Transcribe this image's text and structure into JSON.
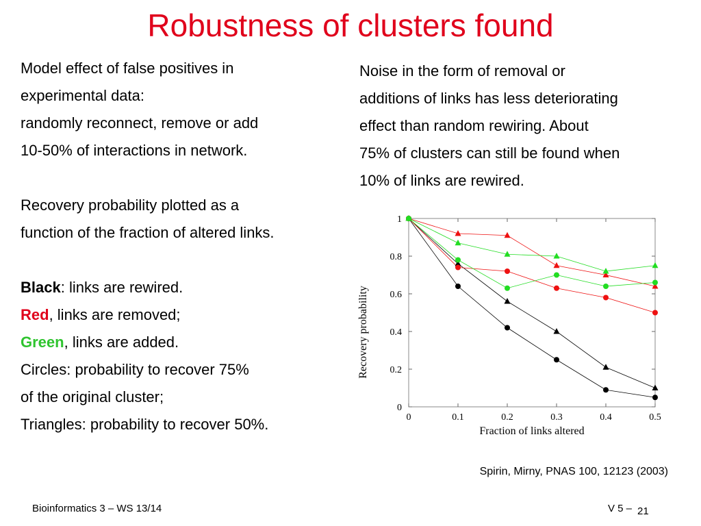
{
  "slide": {
    "title": "Robustness of clusters found",
    "left_lines": [
      "Model effect of false positives in",
      "experimental data:",
      "randomly reconnect, remove or add",
      "10-50% of interactions in network.",
      "Recovery probability plotted as a",
      "function of the fraction of altered links."
    ],
    "legend_black_kw": "Black",
    "legend_black_rest": ": links are rewired.",
    "legend_red_kw": "Red",
    "legend_red_rest": ", links are removed;",
    "legend_green_kw": "Green",
    "legend_green_rest": ", links are added.",
    "circles_line1": "Circles: probability to recover 75%",
    "circles_line2": "of the original cluster;",
    "triangles_line": "Triangles: probability to recover 50%.",
    "right_lines": [
      "Noise in the form of removal or",
      "additions of links has less deteriorating",
      "effect than random rewiring. About",
      "75% of clusters can still be found when",
      "10% of links are rewired."
    ],
    "citation": "Spirin, Mirny, PNAS 100, 12123 (2003)",
    "footer_left": "Bioinformatics 3 – WS 13/14",
    "footer_right": "V 5 –",
    "page_number": "21"
  },
  "chart_data": {
    "type": "line",
    "xlabel": "Fraction of links altered",
    "ylabel": "Recovery probability",
    "xlim": [
      0,
      0.5
    ],
    "ylim": [
      0,
      1
    ],
    "x_ticks": [
      "0",
      "0.1",
      "0.2",
      "0.3",
      "0.4",
      "0.5"
    ],
    "y_ticks": [
      "0",
      "0.2",
      "0.4",
      "0.6",
      "0.8",
      "1"
    ],
    "x": [
      0,
      0.1,
      0.2,
      0.3,
      0.4,
      0.5
    ],
    "series": [
      {
        "color": "#000000",
        "marker": "circle",
        "values": [
          1.0,
          0.64,
          0.42,
          0.25,
          0.09,
          0.05
        ]
      },
      {
        "color": "#000000",
        "marker": "triangle",
        "values": [
          1.0,
          0.76,
          0.56,
          0.4,
          0.21,
          0.1
        ]
      },
      {
        "color": "#ee1111",
        "marker": "circle",
        "values": [
          1.0,
          0.74,
          0.72,
          0.63,
          0.58,
          0.5
        ]
      },
      {
        "color": "#ee1111",
        "marker": "triangle",
        "values": [
          1.0,
          0.92,
          0.91,
          0.75,
          0.7,
          0.64
        ]
      },
      {
        "color": "#22dd22",
        "marker": "circle",
        "values": [
          1.0,
          0.78,
          0.63,
          0.7,
          0.64,
          0.66
        ]
      },
      {
        "color": "#22dd22",
        "marker": "triangle",
        "values": [
          1.0,
          0.87,
          0.81,
          0.8,
          0.72,
          0.75
        ]
      }
    ]
  }
}
